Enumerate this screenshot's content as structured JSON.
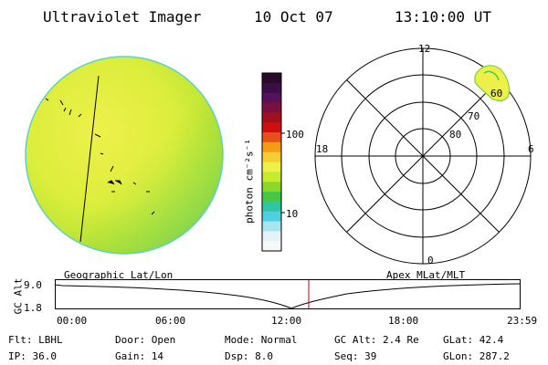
{
  "header": {
    "instrument": "Ultraviolet Imager",
    "date": "10 Oct 07",
    "time": "13:10:00 UT"
  },
  "colorbar": {
    "unit_label": "photon cm⁻²s⁻¹",
    "tick_100": "100",
    "tick_10": "10",
    "colors": [
      "#2a0a2a",
      "#3a0f45",
      "#55125a",
      "#7a0f3f",
      "#a0101f",
      "#cc1010",
      "#e8501a",
      "#f39a16",
      "#f6cd35",
      "#eef04a",
      "#c6ea2e",
      "#8ad82a",
      "#47c844",
      "#2fc6a4",
      "#50cfe0",
      "#a6e4f0",
      "#e4f4f6",
      "#f6f8f8"
    ]
  },
  "polar_plot": {
    "label_12": "12",
    "label_0": "0",
    "label_18": "18",
    "label_6": "6",
    "label_60": "60",
    "label_70": "70",
    "label_80": "80"
  },
  "timeline": {
    "left_label": "Geographic Lat/Lon",
    "right_label": "Apex MLat/MLT",
    "axis_label": "GC Alt",
    "y_top": "9.0",
    "y_bottom": "1.8",
    "times": [
      "00:00",
      "06:00",
      "12:00",
      "18:00",
      "23:59"
    ],
    "marker_color": "#cc0000"
  },
  "info": {
    "filter": "Flt: LBHL",
    "door": "Door: Open",
    "mode": "Mode: Normal",
    "gc_alt": "GC Alt: 2.4 Re",
    "glat": "GLat:  42.4",
    "ip": "IP: 36.0",
    "gain": "Gain: 14",
    "dsp": "Dsp:    8.0",
    "seq": "Seq: 39",
    "glon": "GLon: 287.2"
  }
}
